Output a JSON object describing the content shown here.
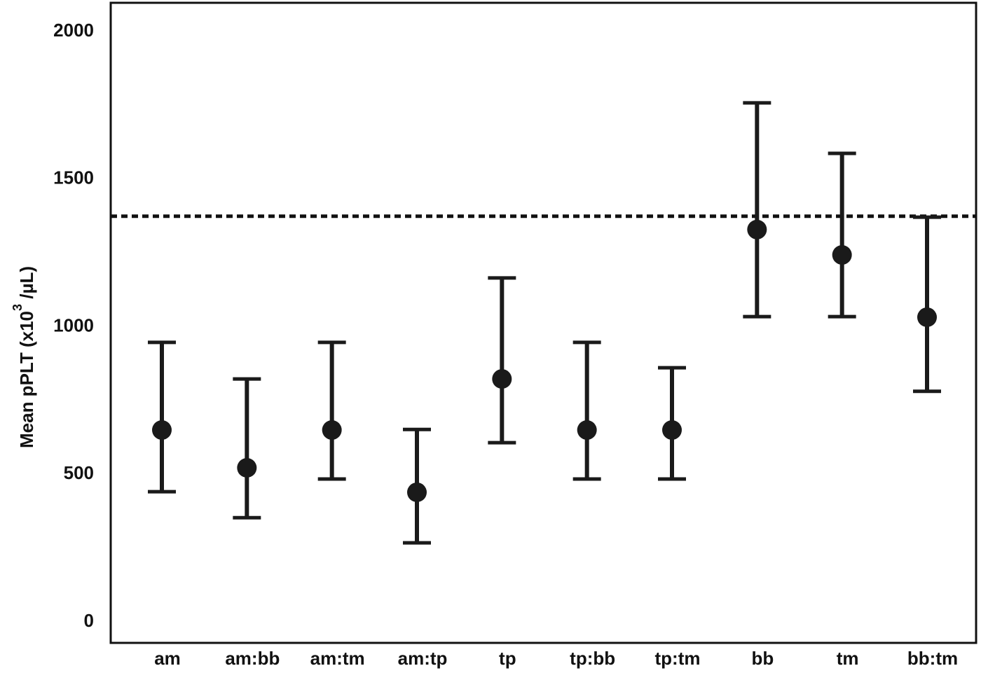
{
  "chart_data": {
    "type": "errorbar",
    "y_label": "Mean pPLT (x10",
    "y_label_sup": "3",
    "y_label_end": " /µL)",
    "categories": [
      "am",
      "am:bb",
      "am:tm",
      "am:tp",
      "tp",
      "tp:bb",
      "tp:tm",
      "bb",
      "tm",
      "bb:tm"
    ],
    "values": [
      650,
      522,
      650,
      439,
      823,
      650,
      650,
      1329,
      1243,
      1032
    ],
    "lower": [
      441,
      353,
      484,
      268,
      607,
      484,
      484,
      1034,
      1034,
      781
    ],
    "upper": [
      947,
      823,
      947,
      652,
      1165,
      947,
      861,
      1758,
      1587,
      1371
    ],
    "reference_line": 1374,
    "color": "#1a1a1a",
    "ylim": [
      -71,
      2097
    ],
    "yticks": [
      0,
      500,
      1000,
      1500,
      2000
    ]
  }
}
